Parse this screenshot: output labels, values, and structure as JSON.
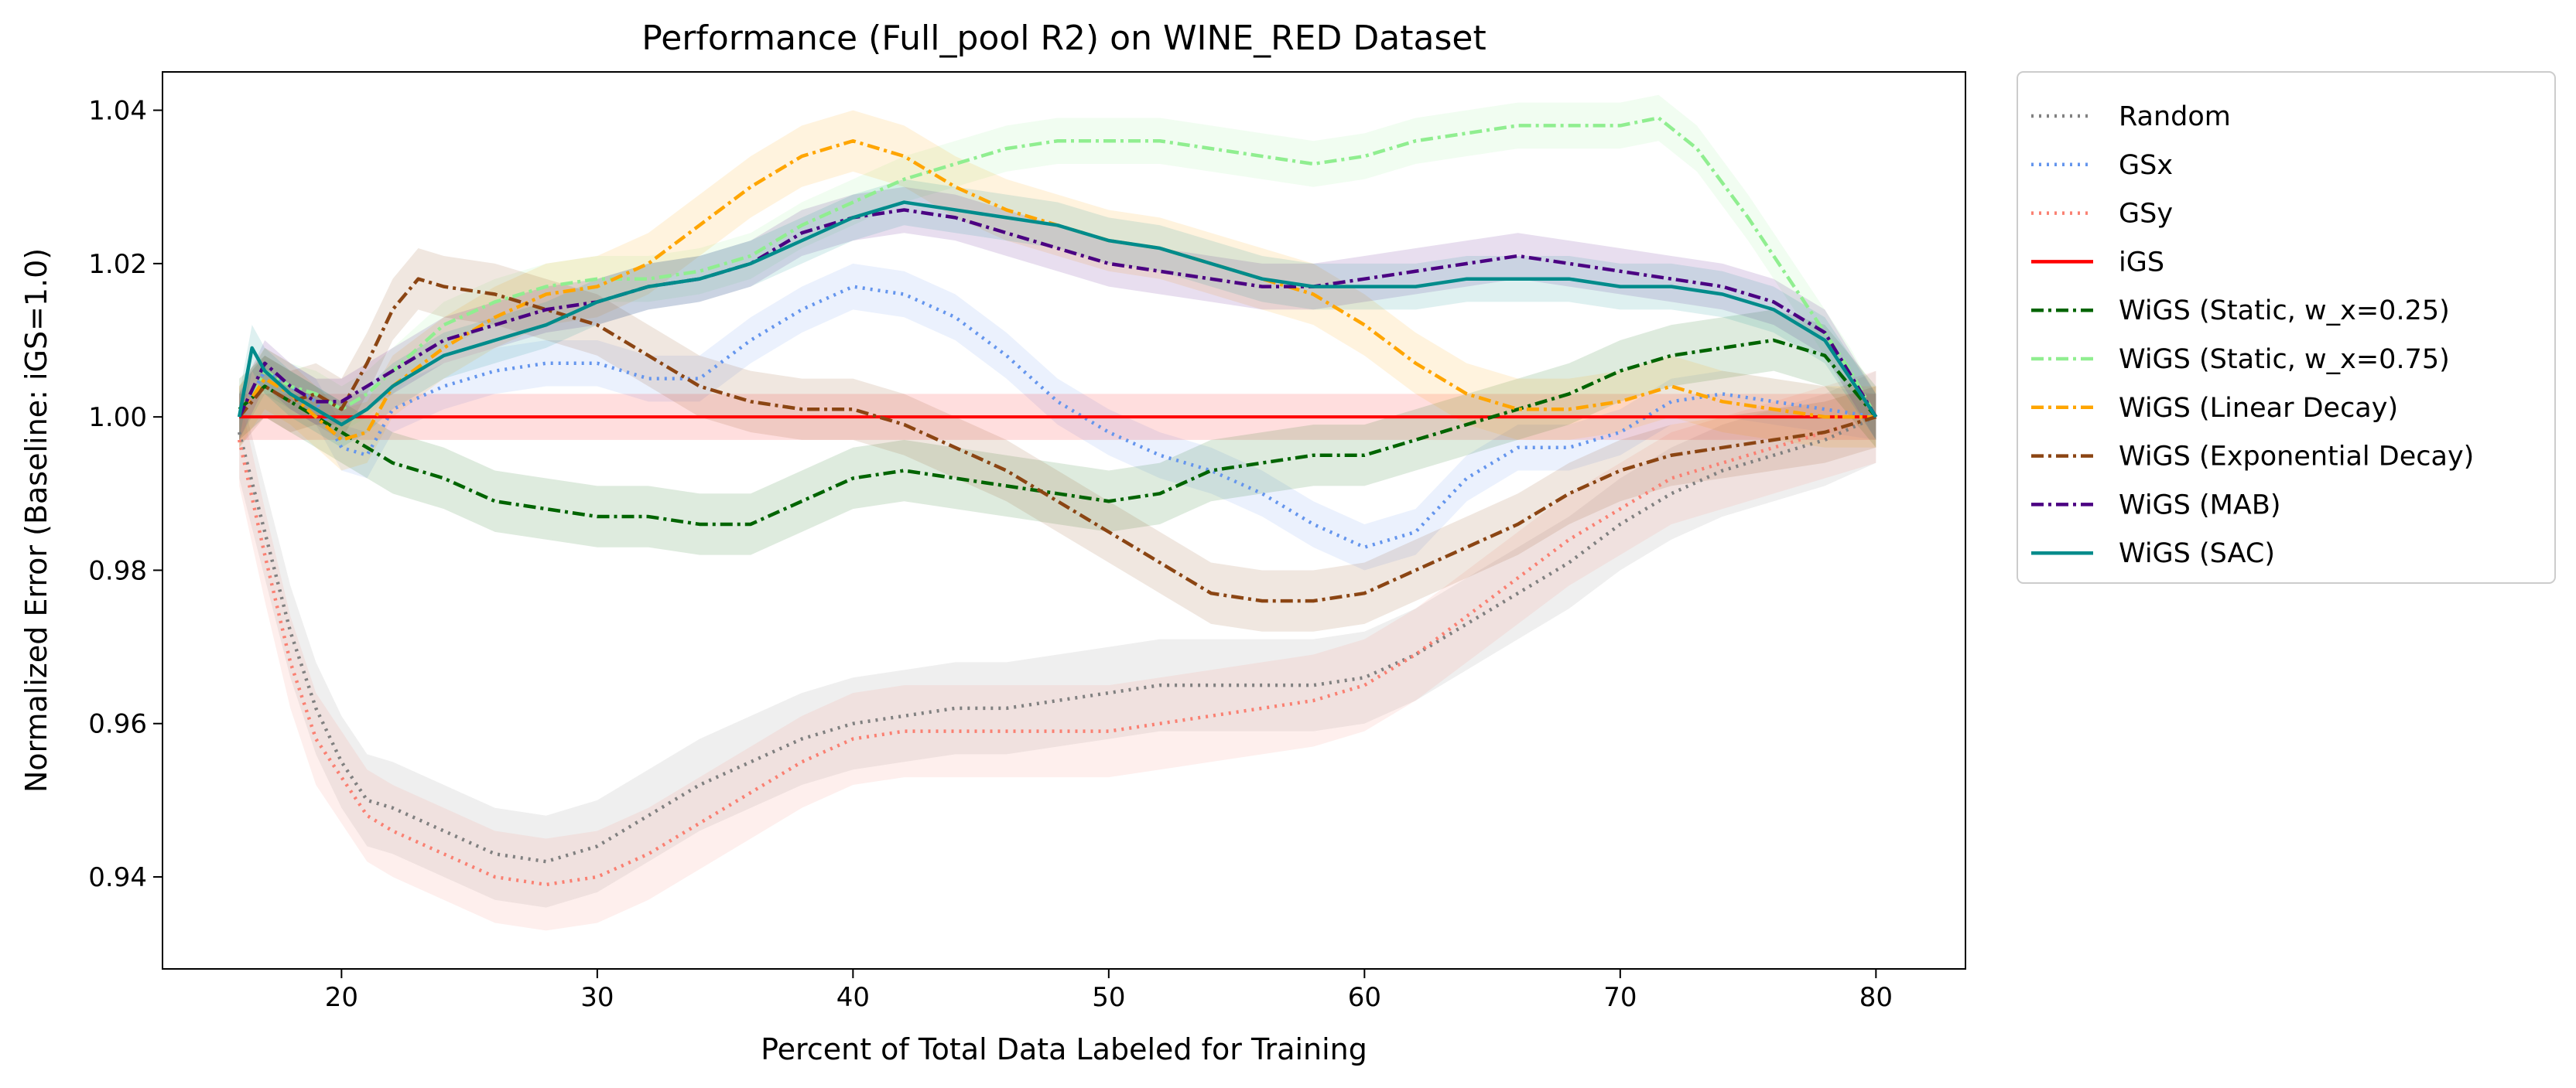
{
  "chart_data": {
    "type": "line",
    "title": "Performance (Full_pool R2) on WINE_RED Dataset",
    "xlabel": "Percent of Total Data Labeled for Training",
    "ylabel": "Normalized Error (Baseline: iGS=1.0)",
    "xlim": [
      13,
      83.5
    ],
    "ylim": [
      0.928,
      1.045
    ],
    "xticks": [
      20,
      30,
      40,
      50,
      60,
      70,
      80
    ],
    "yticks": [
      0.94,
      0.96,
      0.98,
      1.0,
      1.02,
      1.04
    ],
    "xtick_labels": [
      "20",
      "30",
      "40",
      "50",
      "60",
      "70",
      "80"
    ],
    "ytick_labels": [
      "0.94",
      "0.96",
      "0.98",
      "1.00",
      "1.02",
      "1.04"
    ],
    "grid": false,
    "legend_position": "outside-right",
    "series": [
      {
        "name": "Random",
        "color": "#808080",
        "dash": "dotted",
        "x": [
          16,
          17,
          18,
          19,
          20,
          21,
          22,
          24,
          26,
          28,
          30,
          32,
          34,
          36,
          38,
          40,
          42,
          44,
          46,
          48,
          50,
          52,
          54,
          56,
          58,
          60,
          62,
          64,
          66,
          68,
          70,
          72,
          74,
          76,
          78,
          80
        ],
        "y": [
          0.998,
          0.985,
          0.972,
          0.962,
          0.955,
          0.95,
          0.949,
          0.946,
          0.943,
          0.942,
          0.944,
          0.948,
          0.952,
          0.955,
          0.958,
          0.96,
          0.961,
          0.962,
          0.962,
          0.963,
          0.964,
          0.965,
          0.965,
          0.965,
          0.965,
          0.966,
          0.969,
          0.973,
          0.977,
          0.981,
          0.986,
          0.99,
          0.993,
          0.995,
          0.997,
          1.0
        ],
        "band": 0.006
      },
      {
        "name": "GSx",
        "color": "#6495ED",
        "dash": "dotted",
        "x": [
          16,
          17,
          18,
          19,
          20,
          21,
          22,
          24,
          26,
          28,
          30,
          32,
          34,
          36,
          38,
          40,
          42,
          44,
          46,
          48,
          50,
          52,
          54,
          56,
          58,
          60,
          62,
          64,
          66,
          68,
          70,
          72,
          74,
          76,
          78,
          80
        ],
        "y": [
          1.0,
          1.006,
          1.004,
          1.002,
          0.996,
          0.995,
          1.001,
          1.004,
          1.006,
          1.007,
          1.007,
          1.005,
          1.005,
          1.01,
          1.014,
          1.017,
          1.016,
          1.013,
          1.008,
          1.002,
          0.998,
          0.995,
          0.993,
          0.99,
          0.986,
          0.983,
          0.985,
          0.992,
          0.996,
          0.996,
          0.998,
          1.002,
          1.003,
          1.002,
          1.001,
          1.0
        ],
        "band": 0.003
      },
      {
        "name": "GSy",
        "color": "#FA8072",
        "dash": "dotted",
        "x": [
          16,
          17,
          18,
          19,
          20,
          21,
          22,
          24,
          26,
          28,
          30,
          32,
          34,
          36,
          38,
          40,
          42,
          44,
          46,
          48,
          50,
          52,
          54,
          56,
          58,
          60,
          62,
          64,
          66,
          68,
          70,
          72,
          74,
          76,
          78,
          80
        ],
        "y": [
          0.997,
          0.982,
          0.968,
          0.958,
          0.953,
          0.948,
          0.946,
          0.943,
          0.94,
          0.939,
          0.94,
          0.943,
          0.947,
          0.951,
          0.955,
          0.958,
          0.959,
          0.959,
          0.959,
          0.959,
          0.959,
          0.96,
          0.961,
          0.962,
          0.963,
          0.965,
          0.969,
          0.974,
          0.979,
          0.984,
          0.988,
          0.992,
          0.994,
          0.996,
          0.998,
          1.0
        ],
        "band": 0.006
      },
      {
        "name": "iGS",
        "color": "#FF0000",
        "dash": "solid",
        "x": [
          16,
          80
        ],
        "y": [
          1.0,
          1.0
        ],
        "band": 0.003
      },
      {
        "name": "WiGS (Static, w_x=0.25)",
        "color": "#006400",
        "dash": "dashdot",
        "x": [
          16,
          17,
          18,
          19,
          20,
          21,
          22,
          24,
          26,
          28,
          30,
          32,
          34,
          36,
          38,
          40,
          42,
          44,
          46,
          48,
          50,
          52,
          54,
          56,
          58,
          60,
          62,
          64,
          66,
          68,
          70,
          72,
          74,
          76,
          78,
          80
        ],
        "y": [
          1.001,
          1.004,
          1.002,
          1.0,
          0.998,
          0.996,
          0.994,
          0.992,
          0.989,
          0.988,
          0.987,
          0.987,
          0.986,
          0.986,
          0.989,
          0.992,
          0.993,
          0.992,
          0.991,
          0.99,
          0.989,
          0.99,
          0.993,
          0.994,
          0.995,
          0.995,
          0.997,
          0.999,
          1.001,
          1.003,
          1.006,
          1.008,
          1.009,
          1.01,
          1.008,
          1.0
        ],
        "band": 0.004
      },
      {
        "name": "WiGS (Static, w_x=0.75)",
        "color": "#90EE90",
        "dash": "dashdot",
        "x": [
          16,
          17,
          18,
          19,
          20,
          21,
          22,
          24,
          26,
          28,
          30,
          32,
          34,
          36,
          38,
          40,
          42,
          44,
          46,
          48,
          50,
          52,
          54,
          56,
          58,
          60,
          62,
          64,
          66,
          68,
          70,
          71.5,
          73,
          75,
          77,
          79,
          80
        ],
        "y": [
          1.0,
          1.006,
          1.004,
          1.003,
          1.001,
          1.003,
          1.006,
          1.012,
          1.015,
          1.017,
          1.018,
          1.018,
          1.019,
          1.021,
          1.025,
          1.028,
          1.031,
          1.033,
          1.035,
          1.036,
          1.036,
          1.036,
          1.035,
          1.034,
          1.033,
          1.034,
          1.036,
          1.037,
          1.038,
          1.038,
          1.038,
          1.039,
          1.035,
          1.026,
          1.016,
          1.006,
          1.0
        ],
        "band": 0.003
      },
      {
        "name": "WiGS (Linear Decay)",
        "color": "#FFA500",
        "dash": "dashdot",
        "x": [
          16,
          17,
          18,
          19,
          20,
          21,
          22,
          24,
          26,
          28,
          30,
          32,
          34,
          36,
          38,
          40,
          42,
          44,
          46,
          48,
          50,
          52,
          54,
          56,
          58,
          60,
          62,
          64,
          66,
          68,
          70,
          72,
          74,
          76,
          78,
          80
        ],
        "y": [
          1.0,
          1.005,
          1.003,
          1.0,
          0.997,
          0.998,
          1.004,
          1.009,
          1.013,
          1.016,
          1.017,
          1.02,
          1.025,
          1.03,
          1.034,
          1.036,
          1.034,
          1.03,
          1.027,
          1.025,
          1.023,
          1.022,
          1.02,
          1.018,
          1.016,
          1.012,
          1.007,
          1.003,
          1.001,
          1.001,
          1.002,
          1.004,
          1.002,
          1.001,
          1.0,
          1.0
        ],
        "band": 0.004
      },
      {
        "name": "WiGS (Exponential Decay)",
        "color": "#8B4513",
        "dash": "dashdot",
        "x": [
          16,
          17,
          18,
          19,
          20,
          21,
          22,
          23,
          24,
          26,
          28,
          30,
          32,
          34,
          36,
          38,
          40,
          42,
          44,
          46,
          48,
          50,
          52,
          54,
          56,
          58,
          60,
          62,
          64,
          66,
          68,
          70,
          72,
          74,
          76,
          78,
          80
        ],
        "y": [
          1.0,
          1.004,
          1.002,
          1.003,
          1.001,
          1.007,
          1.014,
          1.018,
          1.017,
          1.016,
          1.014,
          1.012,
          1.008,
          1.004,
          1.002,
          1.001,
          1.001,
          0.999,
          0.996,
          0.993,
          0.989,
          0.985,
          0.981,
          0.977,
          0.976,
          0.976,
          0.977,
          0.98,
          0.983,
          0.986,
          0.99,
          0.993,
          0.995,
          0.996,
          0.997,
          0.998,
          1.0
        ],
        "band": 0.004
      },
      {
        "name": "WiGS (MAB)",
        "color": "#4B0082",
        "dash": "dashdot",
        "x": [
          16,
          17,
          18,
          19,
          20,
          21,
          22,
          24,
          26,
          28,
          30,
          32,
          34,
          36,
          38,
          40,
          42,
          44,
          46,
          48,
          50,
          52,
          54,
          56,
          58,
          60,
          62,
          64,
          66,
          68,
          70,
          72,
          74,
          76,
          78,
          80
        ],
        "y": [
          1.0,
          1.007,
          1.004,
          1.002,
          1.002,
          1.004,
          1.006,
          1.01,
          1.012,
          1.014,
          1.015,
          1.017,
          1.018,
          1.02,
          1.024,
          1.026,
          1.027,
          1.026,
          1.024,
          1.022,
          1.02,
          1.019,
          1.018,
          1.017,
          1.017,
          1.018,
          1.019,
          1.02,
          1.021,
          1.02,
          1.019,
          1.018,
          1.017,
          1.015,
          1.011,
          1.0
        ],
        "band": 0.003
      },
      {
        "name": "WiGS (SAC)",
        "color": "#008B8B",
        "dash": "solid",
        "x": [
          16,
          16.5,
          17,
          18,
          19,
          20,
          21,
          22,
          24,
          26,
          28,
          30,
          32,
          34,
          36,
          38,
          40,
          42,
          44,
          46,
          48,
          50,
          52,
          54,
          56,
          58,
          60,
          62,
          64,
          66,
          68,
          70,
          72,
          74,
          76,
          78,
          80
        ],
        "y": [
          1.0,
          1.009,
          1.006,
          1.003,
          1.001,
          0.999,
          1.001,
          1.004,
          1.008,
          1.01,
          1.012,
          1.015,
          1.017,
          1.018,
          1.02,
          1.023,
          1.026,
          1.028,
          1.027,
          1.026,
          1.025,
          1.023,
          1.022,
          1.02,
          1.018,
          1.017,
          1.017,
          1.017,
          1.018,
          1.018,
          1.018,
          1.017,
          1.017,
          1.016,
          1.014,
          1.01,
          1.0
        ],
        "band": 0.003
      }
    ]
  }
}
